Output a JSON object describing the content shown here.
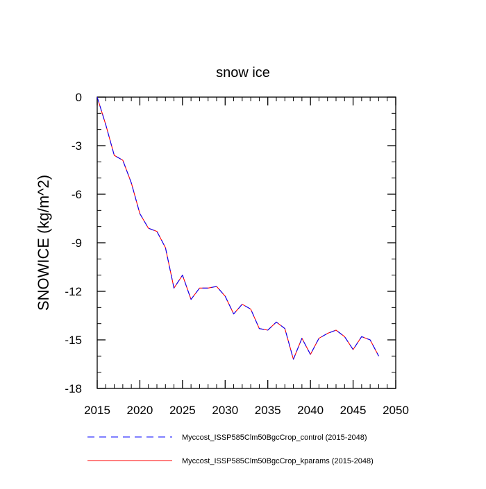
{
  "chart_data": {
    "type": "line",
    "title": "snow ice",
    "xlabel": "",
    "ylabel": "SNOWICE  (kg/m^2)",
    "xlim": [
      2015,
      2050
    ],
    "ylim": [
      -18,
      0
    ],
    "xticks": [
      2015,
      2020,
      2025,
      2030,
      2035,
      2040,
      2045,
      2050
    ],
    "yticks": [
      0,
      -3,
      -6,
      -9,
      -12,
      -15,
      -18
    ],
    "x": [
      2015,
      2016,
      2017,
      2018,
      2019,
      2020,
      2021,
      2022,
      2023,
      2024,
      2025,
      2026,
      2027,
      2028,
      2029,
      2030,
      2031,
      2032,
      2033,
      2034,
      2035,
      2036,
      2037,
      2038,
      2039,
      2040,
      2041,
      2042,
      2043,
      2044,
      2045,
      2046,
      2047,
      2048
    ],
    "series": [
      {
        "name": "Myccost_ISSP585Clm50BgcCrop_control (2015-2048)",
        "color": "#0000ff",
        "dash": "dashed",
        "values": [
          0.0,
          -1.7,
          -3.6,
          -3.9,
          -5.3,
          -7.2,
          -8.1,
          -8.3,
          -9.3,
          -11.8,
          -11.0,
          -12.5,
          -11.8,
          -11.8,
          -11.7,
          -12.3,
          -13.4,
          -12.8,
          -13.1,
          -14.3,
          -14.4,
          -13.9,
          -14.3,
          -16.2,
          -14.9,
          -15.9,
          -14.9,
          -14.6,
          -14.4,
          -14.8,
          -15.6,
          -14.8,
          -15.0,
          -16.0
        ]
      },
      {
        "name": "Myccost_ISSP585Clm50BgcCrop_kparams (2015-2048)",
        "color": "#ff0000",
        "dash": "solid",
        "values": [
          0.0,
          -1.7,
          -3.6,
          -3.9,
          -5.3,
          -7.2,
          -8.1,
          -8.3,
          -9.3,
          -11.8,
          -11.0,
          -12.5,
          -11.8,
          -11.8,
          -11.7,
          -12.3,
          -13.4,
          -12.8,
          -13.1,
          -14.3,
          -14.4,
          -13.9,
          -14.3,
          -16.2,
          -14.9,
          -15.9,
          -14.9,
          -14.6,
          -14.4,
          -14.8,
          -15.6,
          -14.8,
          -15.0,
          -16.0
        ]
      }
    ],
    "legend_position": "bottom",
    "grid": false
  }
}
